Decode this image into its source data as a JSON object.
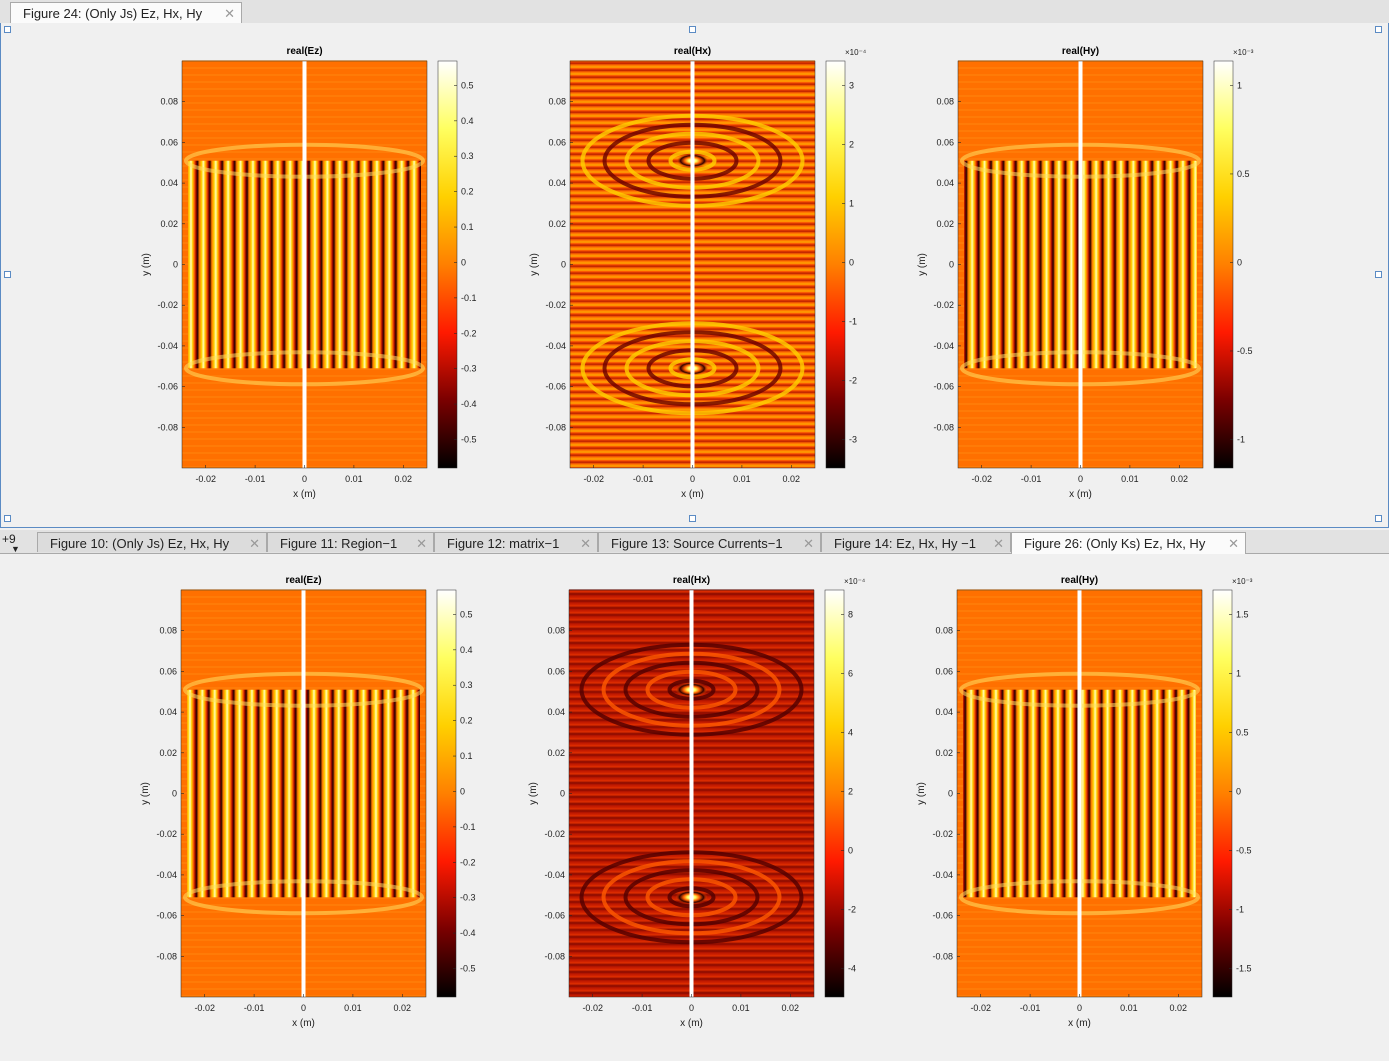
{
  "top_tab": {
    "label": "Figure 24: (Only Js) Ez, Hx, Hy",
    "close": "✕"
  },
  "bottom_tabs": {
    "more_label": "+9",
    "items": [
      {
        "label": "Figure 10: (Only Js) Ez, Hx, Hy",
        "close": "✕"
      },
      {
        "label": "Figure 11: Region−1",
        "close": "✕"
      },
      {
        "label": "Figure 12: matrix−1",
        "close": "✕"
      },
      {
        "label": "Figure 13: Source Currents−1",
        "close": "✕"
      },
      {
        "label": "Figure 14: Ez, Hx, Hy −1",
        "close": "✕"
      },
      {
        "label": "Figure 26: (Only Ks) Ez, Hx, Hy",
        "close": "✕"
      }
    ]
  },
  "colormap": [
    "#000000",
    "#7a0000",
    "#ff1a00",
    "#ff8000",
    "#ffd000",
    "#ffff60",
    "#ffffff"
  ],
  "axes_common": {
    "xlabel": "x (m)",
    "ylabel": "y (m)",
    "xticks": [
      "-0.02",
      "-0.01",
      "0",
      "0.01",
      "0.02"
    ],
    "yticks": [
      "0.08",
      "0.06",
      "0.04",
      "0.02",
      "0",
      "-0.02",
      "-0.04",
      "-0.06",
      "-0.08"
    ]
  },
  "figures": {
    "top": [
      {
        "title": "real(Ez)",
        "exponent": "",
        "cticks": [
          "0.5",
          "0.4",
          "0.3",
          "0.2",
          "0.1",
          "0",
          "-0.1",
          "-0.2",
          "-0.3",
          "-0.4",
          "-0.5"
        ]
      },
      {
        "title": "real(Hx)",
        "exponent": "×10⁻⁴",
        "cticks": [
          "3",
          "2",
          "1",
          "0",
          "-1",
          "-2",
          "-3"
        ]
      },
      {
        "title": "real(Hy)",
        "exponent": "×10⁻³",
        "cticks": [
          "1",
          "0.5",
          "0",
          "-0.5",
          "-1"
        ]
      }
    ],
    "bottom": [
      {
        "title": "real(Ez)",
        "exponent": "",
        "cticks": [
          "0.5",
          "0.4",
          "0.3",
          "0.2",
          "0.1",
          "0",
          "-0.1",
          "-0.2",
          "-0.3",
          "-0.4",
          "-0.5"
        ]
      },
      {
        "title": "real(Hx)",
        "exponent": "×10⁻⁴",
        "cticks": [
          "8",
          "6",
          "4",
          "2",
          "0",
          "-2",
          "-4"
        ]
      },
      {
        "title": "real(Hy)",
        "exponent": "×10⁻³",
        "cticks": [
          "1.5",
          "1",
          "0.5",
          "0",
          "-0.5",
          "-1",
          "-1.5"
        ]
      }
    ]
  }
}
